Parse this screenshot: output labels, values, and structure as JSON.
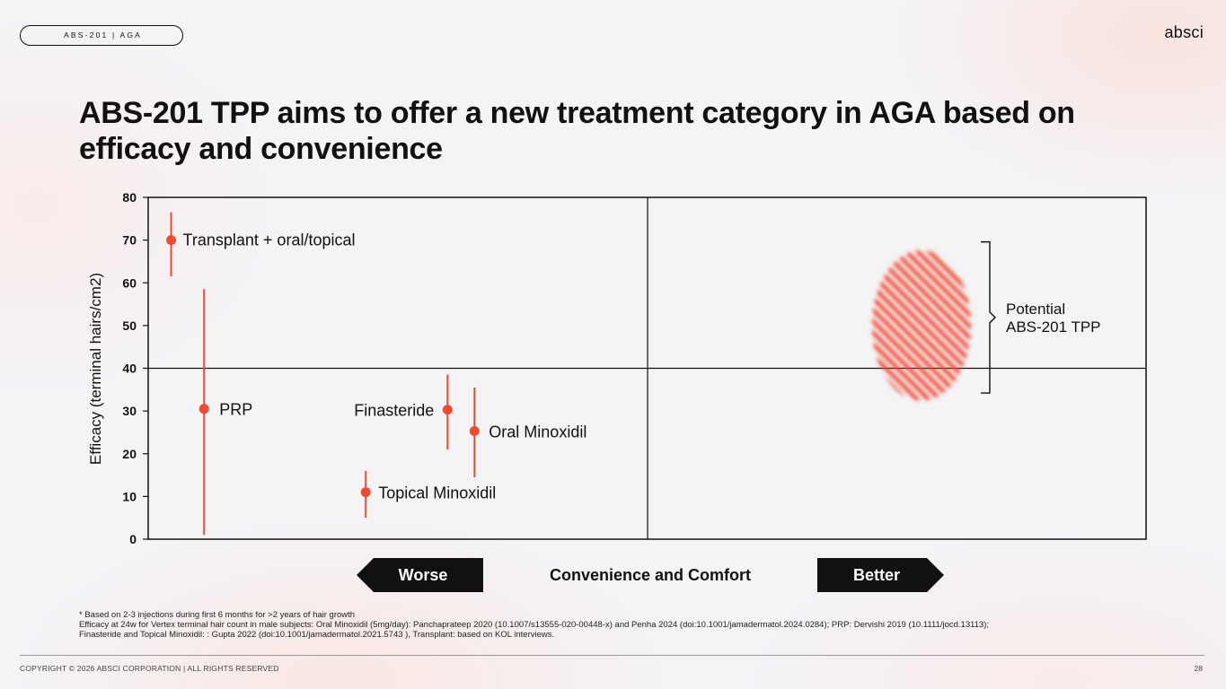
{
  "header": {
    "tag": "ABS-201 | AGA",
    "logo": "absci"
  },
  "title": "ABS-201 TPP aims to offer a new treatment category in AGA based on efficacy and convenience",
  "colors": {
    "accent": "#ef4a32",
    "dark": "#111111"
  },
  "chart_data": {
    "type": "scatter",
    "ylabel": "Efficacy (terminal hairs/cm2)",
    "xlabel": "Convenience and Comfort",
    "ylim": [
      0,
      80
    ],
    "yticks": [
      0,
      10,
      20,
      30,
      40,
      50,
      60,
      70,
      80
    ],
    "x_axis_arrows": {
      "left": "Worse",
      "right": "Better"
    },
    "quadrant_lines": {
      "y": 40
    },
    "points": [
      {
        "label": "Transplant + oral/topical",
        "x": 0.023,
        "y": 70,
        "low": 61.5,
        "high": 76.5
      },
      {
        "label": "PRP",
        "x": 0.056,
        "y": 30.5,
        "low": 1,
        "high": 58.5
      },
      {
        "label": "Topical Minoxidil",
        "x": 0.218,
        "y": 11,
        "low": 5,
        "high": 16
      },
      {
        "label": "Finasteride",
        "x": 0.3,
        "y": 30.3,
        "low": 21,
        "high": 38.5
      },
      {
        "label": "Oral Minoxidil",
        "x": 0.327,
        "y": 25.3,
        "low": 14.5,
        "high": 35.5
      }
    ],
    "target_region": {
      "label": "Potential ABS-201 TPP",
      "label_lines": [
        "Potential",
        "ABS-201 TPP"
      ],
      "x_center": 0.775,
      "y_center": 50,
      "y_low": 34,
      "y_high": 70
    }
  },
  "footnotes": [
    "* Based on 2-3 injections during first 6 months for >2 years of hair growth",
    "Efficacy at 24w for Vertex terminal hair count in male subjects: Oral Minoxidil (5mg/day): Panchaprateep 2020 (10.1007/s13555-020-00448-x) and Penha 2024 (doi:10.1001/jamadermatol.2024.0284); PRP: Dervishi 2019 (10.1111/jocd.13113);",
    "Finasteride and Topical Minoxidil: : Gupta 2022 (doi:10.1001/jamadermatol.2021.5743 ), Transplant: based on KOL interviews."
  ],
  "footer": {
    "copyright": "COPYRIGHT © 2026 ABSCI CORPORATION | ALL RIGHTS RESERVED",
    "page": "28"
  }
}
